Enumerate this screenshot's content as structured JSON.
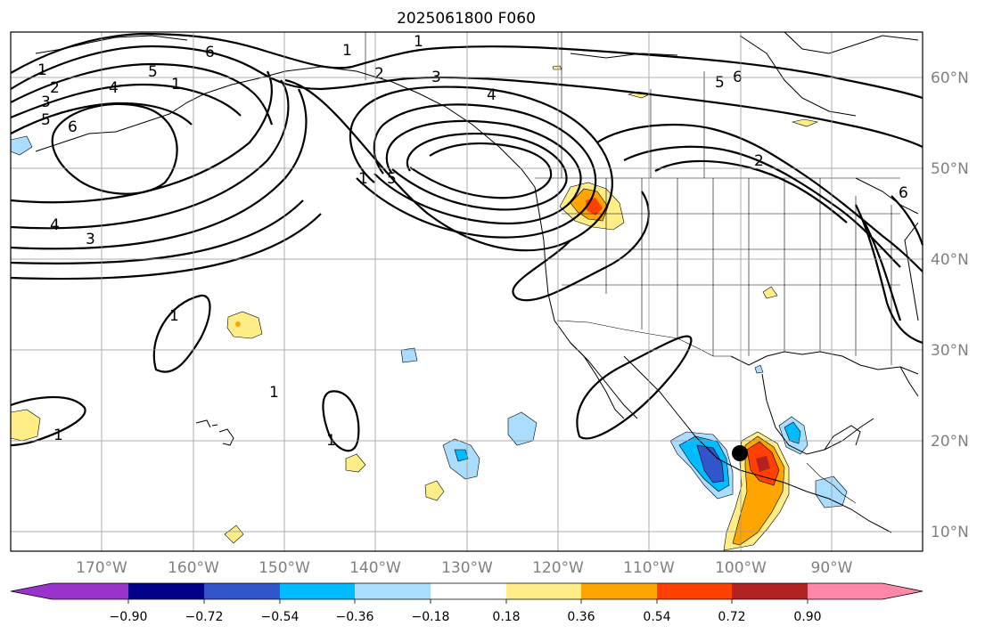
{
  "title": "2025061800 F060",
  "lat_labels": [
    "60°N",
    "50°N",
    "40°N",
    "30°N",
    "20°N",
    "10°N"
  ],
  "lon_labels": [
    "170°W",
    "160°W",
    "150°W",
    "140°W",
    "130°W",
    "120°W",
    "110°W",
    "100°W",
    "90°W"
  ],
  "contour_labels": [
    "1",
    "2",
    "3",
    "4",
    "5",
    "6"
  ],
  "colorbar": {
    "tick_labels": [
      "−0.90",
      "−0.72",
      "−0.54",
      "−0.36",
      "−0.18",
      "0.18",
      "0.36",
      "0.54",
      "0.72",
      "0.90"
    ],
    "colors": [
      "#9933cc",
      "#000088",
      "#3355cc",
      "#00bbff",
      "#aaddff",
      "#ffffff",
      "#ffee88",
      "#ffa500",
      "#ff4000",
      "#b22222",
      "#ff88aa"
    ]
  },
  "marker": "storm-center-dot"
}
